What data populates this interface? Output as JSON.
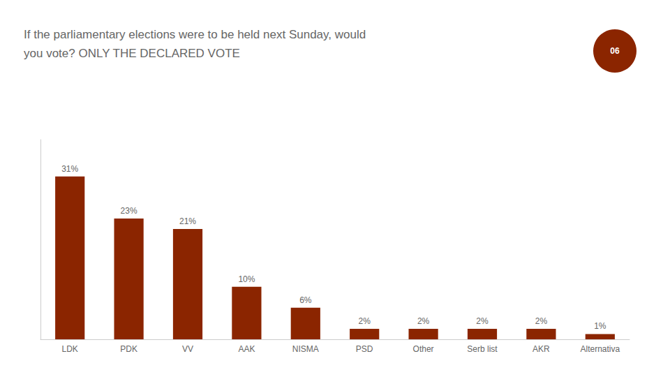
{
  "chart_data": {
    "type": "bar",
    "title": "If the parliamentary elections were to be held next Sunday, would",
    "subtitle": "you vote? ONLY THE DECLARED VOTE",
    "annotations": [
      "06"
    ],
    "categories": [
      "LDK",
      "PDK",
      "VV",
      "AAK",
      "NISMA",
      "PSD",
      "Other",
      "Serb list",
      "AKR",
      "Alternativa"
    ],
    "values": [
      31,
      23,
      21,
      10,
      6,
      2,
      2,
      2,
      2,
      1
    ],
    "value_labels": [
      "31%",
      "23%",
      "21%",
      "10%",
      "6%",
      "2%",
      "2%",
      "2%",
      "2%",
      "1%"
    ],
    "color": "#8B2500",
    "ylim": [
      0,
      38
    ],
    "data_labels": true,
    "tick_labels": "x",
    "grid": false
  }
}
